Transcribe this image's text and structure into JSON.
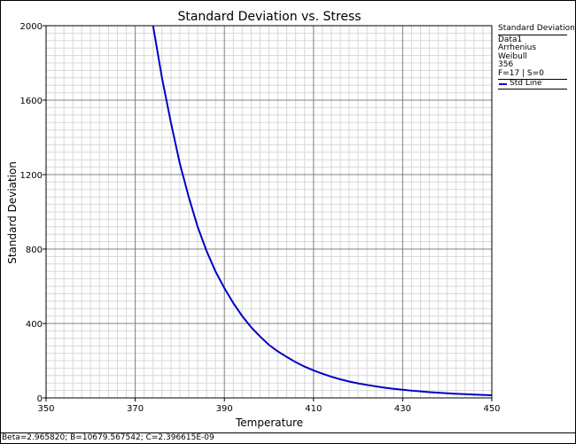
{
  "chart_data": {
    "type": "line",
    "title": "Standard Deviation vs. Stress",
    "xlabel": "Temperature",
    "ylabel": "Standard Deviation",
    "xlim": [
      350,
      450
    ],
    "ylim": [
      0,
      2000
    ],
    "x_ticks": [
      "350",
      "370",
      "390",
      "410",
      "430",
      "450"
    ],
    "y_ticks": [
      "0",
      "400",
      "800",
      "1200",
      "1600",
      "2000"
    ],
    "grid": true,
    "legend_placement": "right",
    "series": [
      {
        "name": "Std Line",
        "color": "#0000c8",
        "x": [
          374,
          376,
          378,
          380,
          382,
          384,
          386,
          388,
          390,
          392,
          394,
          396,
          398,
          400,
          402,
          404,
          406,
          408,
          410,
          412,
          414,
          416,
          418,
          420,
          422,
          424,
          426,
          428,
          430,
          432,
          434,
          436,
          438,
          440,
          442,
          444,
          446,
          448,
          450
        ],
        "y": [
          2000,
          1720,
          1480,
          1260,
          1080,
          920,
          790,
          680,
          590,
          510,
          440,
          380,
          330,
          285,
          250,
          220,
          192,
          168,
          148,
          130,
          114,
          100,
          88,
          78,
          70,
          62,
          55,
          49,
          44,
          39,
          35,
          31,
          28,
          25,
          22,
          20,
          18,
          16,
          14
        ]
      }
    ]
  },
  "legend": {
    "title": "Standard Deviation",
    "lines": [
      "Data1",
      "Arrhenius",
      "Weibull",
      "356",
      "F=17 | S=0"
    ],
    "series_label": "Std Line"
  },
  "footer": {
    "text": "Beta=2.965820; B=10679.567542; C=2.396615E-09"
  }
}
